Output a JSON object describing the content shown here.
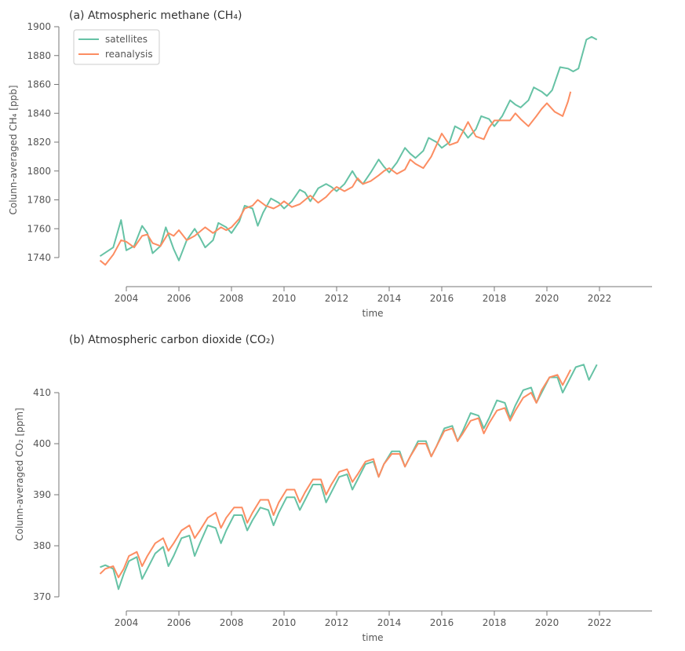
{
  "colors": {
    "satellites": "#66c2a5",
    "reanalysis": "#fc8d62",
    "axis": "#777777",
    "text": "#555555"
  },
  "chart_data": [
    {
      "type": "line",
      "title": "(a) Atmospheric methane (CH₄)",
      "xlabel": "time",
      "ylabel": "Colunn-averaged CH₄ [ppb]",
      "xlim": [
        2003.0,
        2022.0
      ],
      "ylim": [
        1740,
        1900
      ],
      "xticks": [
        2004,
        2006,
        2008,
        2010,
        2012,
        2014,
        2016,
        2018,
        2020,
        2022
      ],
      "yticks": [
        1740,
        1760,
        1780,
        1800,
        1820,
        1840,
        1860,
        1880,
        1900
      ],
      "legend": "top-left",
      "series": [
        {
          "name": "satellites",
          "color": "#66c2a5",
          "x": [
            2003.0,
            2003.5,
            2003.8,
            2004.0,
            2004.3,
            2004.6,
            2004.8,
            2005.0,
            2005.3,
            2005.5,
            2005.8,
            2006.0,
            2006.3,
            2006.6,
            2006.8,
            2007.0,
            2007.3,
            2007.5,
            2007.8,
            2008.0,
            2008.3,
            2008.5,
            2008.8,
            2009.0,
            2009.2,
            2009.5,
            2009.8,
            2010.0,
            2010.3,
            2010.6,
            2010.8,
            2011.0,
            2011.3,
            2011.6,
            2011.8,
            2012.0,
            2012.3,
            2012.6,
            2012.8,
            2013.0,
            2013.3,
            2013.6,
            2013.8,
            2014.0,
            2014.3,
            2014.6,
            2014.8,
            2015.0,
            2015.3,
            2015.5,
            2015.8,
            2016.0,
            2016.3,
            2016.5,
            2016.8,
            2017.0,
            2017.3,
            2017.5,
            2017.8,
            2018.0,
            2018.3,
            2018.6,
            2018.8,
            2019.0,
            2019.3,
            2019.5,
            2019.8,
            2020.0,
            2020.2,
            2020.5,
            2020.8,
            2021.0,
            2021.2,
            2021.5,
            2021.7,
            2021.9
          ],
          "y": [
            1741,
            1747,
            1766,
            1745,
            1748,
            1762,
            1757,
            1743,
            1748,
            1761,
            1746,
            1738,
            1752,
            1760,
            1754,
            1747,
            1752,
            1764,
            1761,
            1757,
            1765,
            1776,
            1774,
            1762,
            1771,
            1781,
            1778,
            1774,
            1779,
            1787,
            1785,
            1779,
            1788,
            1791,
            1789,
            1786,
            1791,
            1800,
            1794,
            1791,
            1799,
            1808,
            1803,
            1799,
            1806,
            1816,
            1812,
            1809,
            1814,
            1823,
            1820,
            1816,
            1820,
            1831,
            1828,
            1823,
            1829,
            1838,
            1836,
            1831,
            1838,
            1849,
            1846,
            1844,
            1849,
            1858,
            1855,
            1852,
            1856,
            1872,
            1871,
            1869,
            1871,
            1891,
            1893,
            1891
          ]
        },
        {
          "name": "reanalysis",
          "color": "#fc8d62",
          "x": [
            2003.0,
            2003.2,
            2003.5,
            2003.8,
            2004.0,
            2004.3,
            2004.6,
            2004.8,
            2005.0,
            2005.3,
            2005.6,
            2005.8,
            2006.0,
            2006.3,
            2006.6,
            2006.8,
            2007.0,
            2007.3,
            2007.6,
            2007.8,
            2008.0,
            2008.3,
            2008.5,
            2008.8,
            2009.0,
            2009.3,
            2009.6,
            2009.8,
            2010.0,
            2010.3,
            2010.6,
            2010.8,
            2011.0,
            2011.3,
            2011.6,
            2011.8,
            2012.0,
            2012.3,
            2012.6,
            2012.8,
            2013.0,
            2013.3,
            2013.6,
            2013.8,
            2014.0,
            2014.3,
            2014.6,
            2014.8,
            2015.0,
            2015.3,
            2015.6,
            2015.8,
            2016.0,
            2016.3,
            2016.6,
            2016.8,
            2017.0,
            2017.3,
            2017.6,
            2017.8,
            2018.0,
            2018.3,
            2018.6,
            2018.8,
            2019.0,
            2019.3,
            2019.6,
            2019.8,
            2020.0,
            2020.3,
            2020.6,
            2020.8,
            2020.9
          ],
          "y": [
            1738,
            1735,
            1742,
            1752,
            1751,
            1747,
            1755,
            1756,
            1750,
            1748,
            1757,
            1755,
            1759,
            1752,
            1755,
            1758,
            1761,
            1757,
            1761,
            1759,
            1761,
            1767,
            1774,
            1776,
            1780,
            1776,
            1774,
            1776,
            1779,
            1775,
            1777,
            1780,
            1783,
            1778,
            1782,
            1786,
            1789,
            1786,
            1789,
            1795,
            1791,
            1793,
            1797,
            1800,
            1802,
            1798,
            1801,
            1808,
            1805,
            1802,
            1810,
            1818,
            1826,
            1818,
            1820,
            1827,
            1834,
            1824,
            1822,
            1830,
            1835,
            1835,
            1835,
            1840,
            1836,
            1831,
            1838,
            1843,
            1847,
            1841,
            1838,
            1848,
            1855
          ]
        }
      ]
    },
    {
      "type": "line",
      "title": "(b) Atmospheric carbon dioxide (CO₂)",
      "xlabel": "time",
      "ylabel": "Colunn-averaged CO₂ [ppm]",
      "xlim": [
        2003.0,
        2022.0
      ],
      "ylim": [
        370,
        410
      ],
      "xticks": [
        2004,
        2006,
        2008,
        2010,
        2012,
        2014,
        2016,
        2018,
        2020,
        2022
      ],
      "yticks": [
        370,
        380,
        390,
        400,
        410
      ],
      "series": [
        {
          "name": "satellites",
          "color": "#66c2a5",
          "x": [
            2003.0,
            2003.2,
            2003.5,
            2003.7,
            2003.9,
            2004.1,
            2004.4,
            2004.6,
            2004.8,
            2005.1,
            2005.4,
            2005.6,
            2005.8,
            2006.1,
            2006.4,
            2006.6,
            2006.8,
            2007.1,
            2007.4,
            2007.6,
            2007.8,
            2008.1,
            2008.4,
            2008.6,
            2008.8,
            2009.1,
            2009.4,
            2009.6,
            2009.8,
            2010.1,
            2010.4,
            2010.6,
            2010.8,
            2011.1,
            2011.4,
            2011.6,
            2011.8,
            2012.1,
            2012.4,
            2012.6,
            2012.8,
            2013.1,
            2013.4,
            2013.6,
            2013.8,
            2014.1,
            2014.4,
            2014.6,
            2014.8,
            2015.1,
            2015.4,
            2015.6,
            2015.8,
            2016.1,
            2016.4,
            2016.6,
            2016.8,
            2017.1,
            2017.4,
            2017.6,
            2017.8,
            2018.1,
            2018.4,
            2018.6,
            2018.8,
            2019.1,
            2019.4,
            2019.6,
            2019.8,
            2020.1,
            2020.4,
            2020.6,
            2020.8,
            2021.1,
            2021.4,
            2021.6,
            2021.9
          ],
          "y": [
            375.8,
            376.2,
            375.5,
            371.5,
            374.5,
            377.0,
            377.8,
            373.5,
            375.5,
            378.5,
            379.8,
            376.0,
            378.0,
            381.5,
            382.0,
            378.0,
            380.5,
            384.0,
            383.5,
            380.5,
            383.0,
            386.0,
            386.0,
            383.0,
            385.0,
            387.5,
            387.0,
            384.0,
            386.5,
            389.5,
            389.5,
            387.0,
            389.0,
            392.0,
            392.0,
            388.5,
            390.5,
            393.5,
            394.0,
            391.0,
            393.0,
            396.0,
            396.5,
            393.5,
            396.0,
            398.5,
            398.5,
            395.5,
            397.5,
            400.5,
            400.5,
            397.5,
            399.5,
            403.0,
            403.5,
            400.5,
            402.5,
            406.0,
            405.5,
            403.0,
            405.0,
            408.5,
            408.0,
            405.0,
            407.5,
            410.5,
            411.0,
            408.0,
            410.0,
            413.0,
            413.0,
            410.0,
            412.0,
            415.0,
            415.5,
            412.5,
            415.5
          ]
        },
        {
          "name": "reanalysis",
          "color": "#fc8d62",
          "x": [
            2003.0,
            2003.2,
            2003.5,
            2003.7,
            2003.9,
            2004.1,
            2004.4,
            2004.6,
            2004.8,
            2005.1,
            2005.4,
            2005.6,
            2005.8,
            2006.1,
            2006.4,
            2006.6,
            2006.8,
            2007.1,
            2007.4,
            2007.6,
            2007.8,
            2008.1,
            2008.4,
            2008.6,
            2008.8,
            2009.1,
            2009.4,
            2009.6,
            2009.8,
            2010.1,
            2010.4,
            2010.6,
            2010.8,
            2011.1,
            2011.4,
            2011.6,
            2011.8,
            2012.1,
            2012.4,
            2012.6,
            2012.8,
            2013.1,
            2013.4,
            2013.6,
            2013.8,
            2014.1,
            2014.4,
            2014.6,
            2014.8,
            2015.1,
            2015.4,
            2015.6,
            2015.8,
            2016.1,
            2016.4,
            2016.6,
            2016.8,
            2017.1,
            2017.4,
            2017.6,
            2017.8,
            2018.1,
            2018.4,
            2018.6,
            2018.8,
            2019.1,
            2019.4,
            2019.6,
            2019.8,
            2020.1,
            2020.4,
            2020.6,
            2020.9
          ],
          "y": [
            374.5,
            375.5,
            376.0,
            373.8,
            375.5,
            378.0,
            378.8,
            376.0,
            378.0,
            380.5,
            381.5,
            379.0,
            380.5,
            383.0,
            384.0,
            381.5,
            383.0,
            385.5,
            386.5,
            383.5,
            385.5,
            387.5,
            387.5,
            384.5,
            386.5,
            389.0,
            389.0,
            386.0,
            388.5,
            391.0,
            391.0,
            388.5,
            390.5,
            393.0,
            393.0,
            390.0,
            392.0,
            394.5,
            395.0,
            392.5,
            394.0,
            396.5,
            397.0,
            393.5,
            396.0,
            398.0,
            398.0,
            395.5,
            397.5,
            400.0,
            400.0,
            397.5,
            399.5,
            402.5,
            403.0,
            400.5,
            402.0,
            404.5,
            405.0,
            402.0,
            404.0,
            406.5,
            407.0,
            404.5,
            406.5,
            409.0,
            410.0,
            408.0,
            410.5,
            413.0,
            413.5,
            411.5,
            414.5
          ]
        }
      ]
    }
  ]
}
